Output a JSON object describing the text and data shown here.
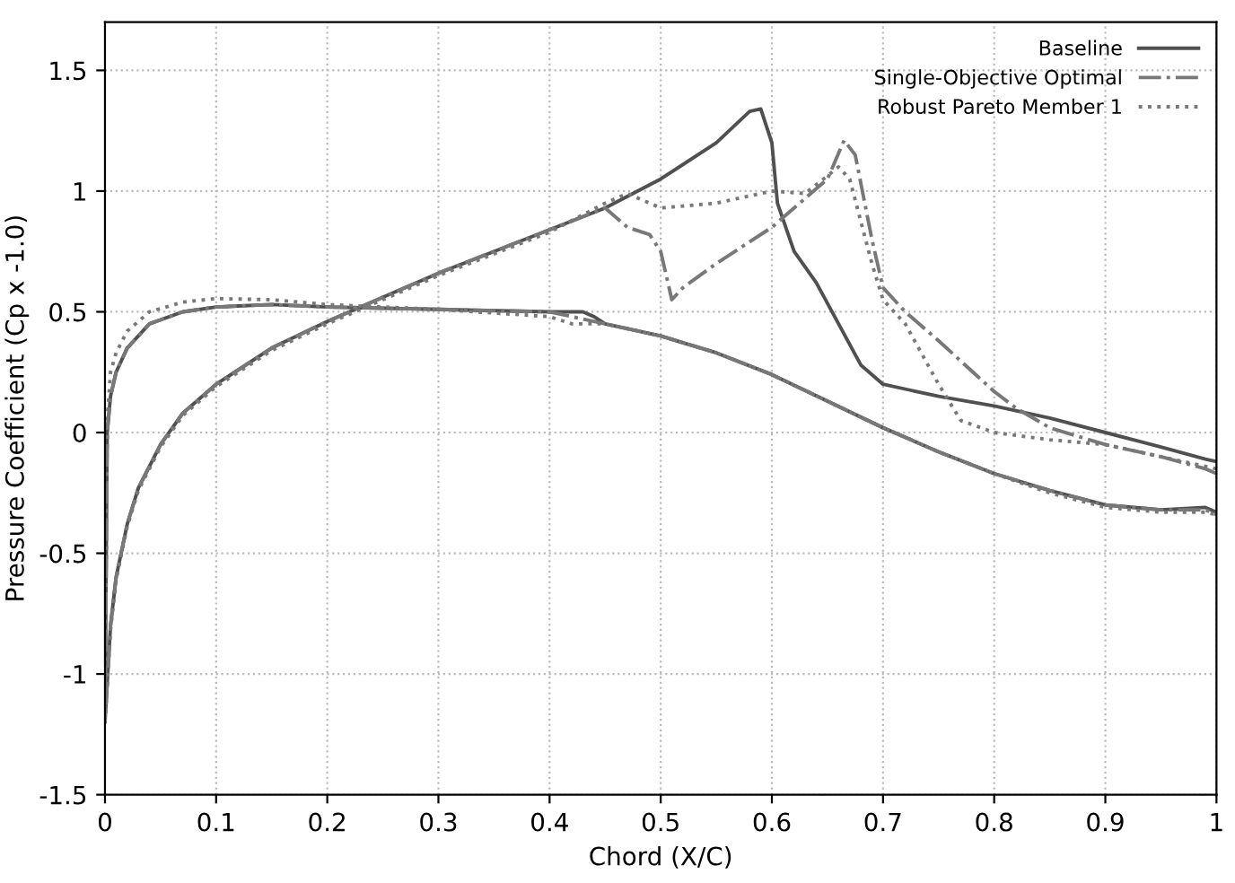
{
  "chart_data": {
    "type": "line",
    "xlabel": "Chord (X/C)",
    "ylabel": "Pressure Coefficient (Cp x -1.0)",
    "xlim": [
      0,
      1
    ],
    "ylim": [
      -1.5,
      1.7
    ],
    "xticks": [
      0,
      0.1,
      0.2,
      0.3,
      0.4,
      0.5,
      0.6,
      0.7,
      0.8,
      0.9,
      1
    ],
    "yticks": [
      -1.5,
      -1,
      -0.5,
      0,
      0.5,
      1,
      1.5
    ],
    "grid": true,
    "legend": "top right",
    "series": [
      {
        "name": "Baseline",
        "color": "#505050",
        "line_style": "solid",
        "x": [
          1.0,
          0.99,
          0.95,
          0.9,
          0.85,
          0.8,
          0.75,
          0.7,
          0.68,
          0.66,
          0.64,
          0.62,
          0.605,
          0.6,
          0.59,
          0.58,
          0.55,
          0.5,
          0.45,
          0.4,
          0.35,
          0.3,
          0.25,
          0.2,
          0.15,
          0.1,
          0.07,
          0.05,
          0.03,
          0.02,
          0.01,
          0.005,
          0.0,
          0.002,
          0.005,
          0.01,
          0.02,
          0.04,
          0.07,
          0.1,
          0.15,
          0.2,
          0.3,
          0.4,
          0.43,
          0.44,
          0.45,
          0.5,
          0.55,
          0.6,
          0.65,
          0.7,
          0.75,
          0.8,
          0.85,
          0.9,
          0.95,
          0.99,
          1.0
        ],
        "values": [
          -0.12,
          -0.11,
          -0.06,
          0.0,
          0.06,
          0.11,
          0.15,
          0.2,
          0.28,
          0.45,
          0.62,
          0.75,
          0.95,
          1.2,
          1.34,
          1.33,
          1.2,
          1.05,
          0.93,
          0.84,
          0.75,
          0.66,
          0.56,
          0.46,
          0.35,
          0.2,
          0.08,
          -0.05,
          -0.23,
          -0.38,
          -0.6,
          -0.8,
          -1.2,
          0.0,
          0.15,
          0.25,
          0.35,
          0.45,
          0.5,
          0.52,
          0.53,
          0.52,
          0.51,
          0.5,
          0.5,
          0.48,
          0.45,
          0.4,
          0.33,
          0.24,
          0.13,
          0.02,
          -0.08,
          -0.17,
          -0.24,
          -0.3,
          -0.32,
          -0.31,
          -0.33
        ]
      },
      {
        "name": "Single-Objective Optimal",
        "color": "#787878",
        "line_style": "dashdot",
        "x": [
          1.0,
          0.99,
          0.95,
          0.9,
          0.85,
          0.82,
          0.8,
          0.75,
          0.72,
          0.7,
          0.69,
          0.675,
          0.665,
          0.65,
          0.6,
          0.55,
          0.52,
          0.51,
          0.5,
          0.49,
          0.47,
          0.45,
          0.4,
          0.35,
          0.3,
          0.25,
          0.2,
          0.15,
          0.1,
          0.07,
          0.05,
          0.03,
          0.02,
          0.01,
          0.005,
          0.0,
          0.002,
          0.005,
          0.01,
          0.02,
          0.04,
          0.07,
          0.1,
          0.15,
          0.2,
          0.3,
          0.4,
          0.43,
          0.45,
          0.5,
          0.55,
          0.6,
          0.65,
          0.7,
          0.75,
          0.8,
          0.85,
          0.9,
          0.95,
          0.99,
          1.0
        ],
        "values": [
          -0.17,
          -0.15,
          -0.1,
          -0.05,
          0.02,
          0.1,
          0.17,
          0.38,
          0.5,
          0.6,
          0.8,
          1.15,
          1.21,
          1.05,
          0.85,
          0.7,
          0.6,
          0.55,
          0.75,
          0.82,
          0.85,
          0.93,
          0.84,
          0.75,
          0.66,
          0.56,
          0.46,
          0.35,
          0.2,
          0.08,
          -0.05,
          -0.23,
          -0.38,
          -0.6,
          -0.8,
          -1.2,
          0.0,
          0.15,
          0.25,
          0.35,
          0.45,
          0.5,
          0.52,
          0.53,
          0.52,
          0.51,
          0.5,
          0.47,
          0.45,
          0.4,
          0.33,
          0.24,
          0.13,
          0.02,
          -0.08,
          -0.17,
          -0.24,
          -0.3,
          -0.32,
          -0.32,
          -0.34
        ]
      },
      {
        "name": "Robust Pareto Member 1",
        "color": "#787878",
        "line_style": "dotted",
        "x": [
          1.0,
          0.95,
          0.9,
          0.85,
          0.8,
          0.77,
          0.75,
          0.72,
          0.7,
          0.69,
          0.67,
          0.66,
          0.63,
          0.6,
          0.55,
          0.5,
          0.47,
          0.45,
          0.4,
          0.35,
          0.3,
          0.25,
          0.2,
          0.15,
          0.1,
          0.07,
          0.05,
          0.03,
          0.02,
          0.01,
          0.005,
          0.0,
          0.002,
          0.005,
          0.01,
          0.02,
          0.04,
          0.07,
          0.1,
          0.15,
          0.2,
          0.3,
          0.4,
          0.42,
          0.45,
          0.5,
          0.55,
          0.6,
          0.65,
          0.7,
          0.75,
          0.8,
          0.85,
          0.9,
          0.95,
          0.99,
          1.0
        ],
        "values": [
          -0.15,
          -0.1,
          -0.05,
          -0.03,
          0.0,
          0.05,
          0.2,
          0.45,
          0.55,
          0.7,
          1.05,
          1.1,
          0.99,
          1.0,
          0.95,
          0.93,
          0.99,
          0.95,
          0.83,
          0.74,
          0.65,
          0.55,
          0.45,
          0.34,
          0.19,
          0.07,
          -0.06,
          -0.24,
          -0.39,
          -0.61,
          -0.82,
          -1.2,
          0.05,
          0.25,
          0.33,
          0.42,
          0.5,
          0.54,
          0.555,
          0.55,
          0.53,
          0.51,
          0.48,
          0.45,
          0.45,
          0.4,
          0.33,
          0.24,
          0.13,
          0.02,
          -0.08,
          -0.17,
          -0.25,
          -0.31,
          -0.33,
          -0.33,
          -0.34
        ]
      }
    ]
  }
}
